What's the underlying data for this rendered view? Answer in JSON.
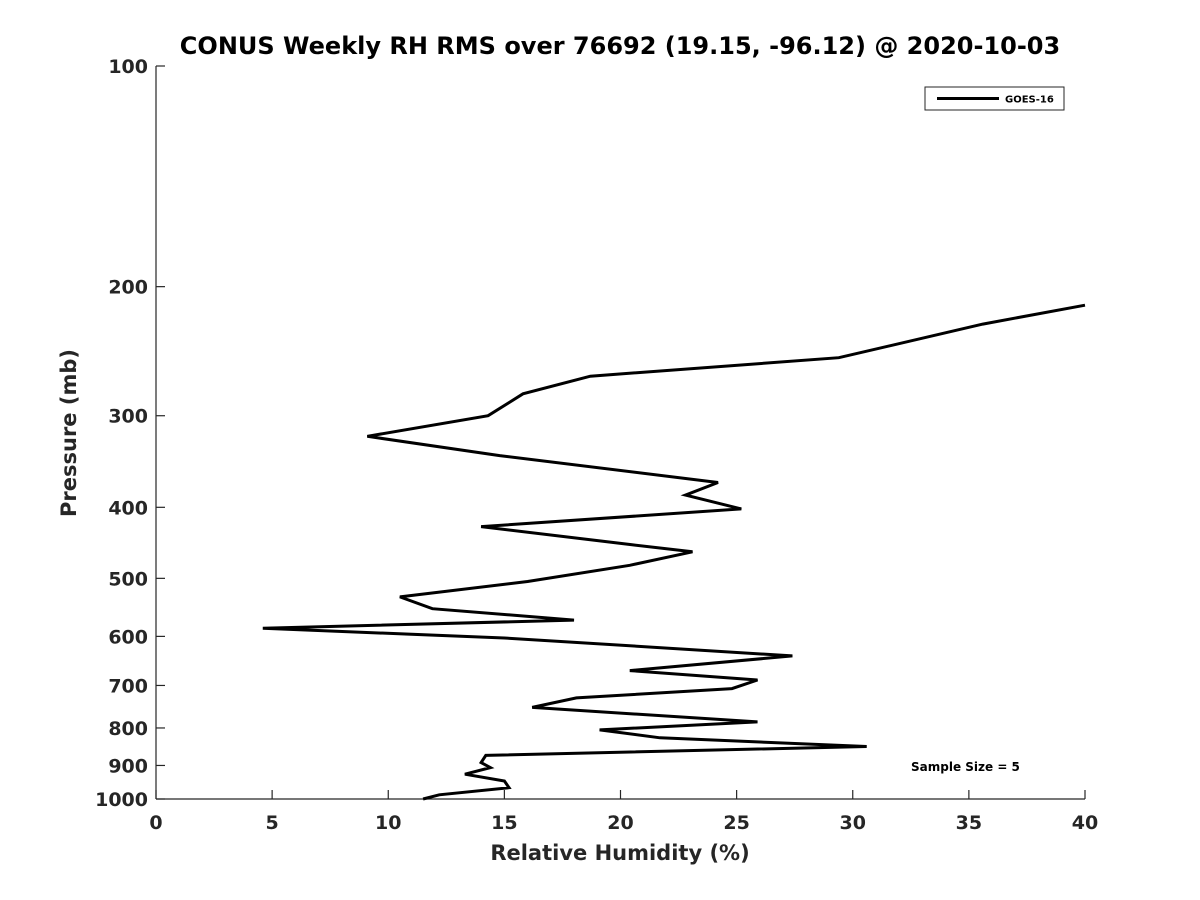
{
  "chart_data": {
    "type": "line",
    "title": "CONUS Weekly RH RMS over 76692 (19.15, -96.12) @ 2020-10-03",
    "xlabel": "Relative Humidity (%)",
    "ylabel": "Pressure (mb)",
    "xlim": [
      0,
      40
    ],
    "ylim": [
      100,
      1000
    ],
    "y_scale": "log",
    "y_reversed": true,
    "grid": false,
    "legend_position": "top-right",
    "x_ticks": [
      0,
      5,
      10,
      15,
      20,
      25,
      30,
      35,
      40
    ],
    "y_ticks": [
      100,
      200,
      300,
      400,
      500,
      600,
      700,
      800,
      900,
      1000
    ],
    "annotation": "Sample Size = 5",
    "series": [
      {
        "name": "GOES-16",
        "color": "#000000",
        "x": [
          40.0,
          35.6,
          29.4,
          18.7,
          15.8,
          14.3,
          9.1,
          14.8,
          24.2,
          22.8,
          25.2,
          14.0,
          20.5,
          23.1,
          20.4,
          16.0,
          10.5,
          11.9,
          18.0,
          4.6,
          15.0,
          27.4,
          20.4,
          25.9,
          24.8,
          18.1,
          16.2,
          25.9,
          19.1,
          21.7,
          30.6,
          14.2,
          14.0,
          14.4,
          13.3,
          15.0,
          15.2,
          12.2,
          11.5
        ],
        "y": [
          212,
          225,
          250,
          265,
          280,
          300,
          320,
          340,
          370,
          385,
          402,
          425,
          450,
          460,
          480,
          505,
          530,
          550,
          570,
          585,
          603,
          638,
          668,
          688,
          707,
          728,
          750,
          785,
          805,
          825,
          848,
          872,
          892,
          906,
          925,
          945,
          965,
          987,
          1000
        ]
      }
    ]
  }
}
